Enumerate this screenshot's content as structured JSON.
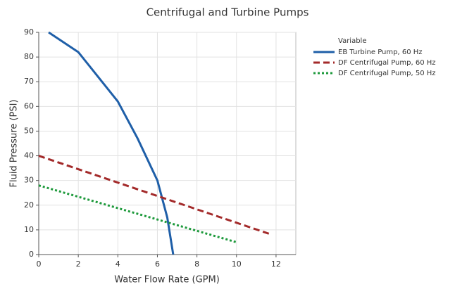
{
  "chart_data": {
    "type": "line",
    "title": "Centrifugal and Turbine Pumps",
    "x_label": "Water Flow Rate (GPM)",
    "y_label": "Fluid Pressure (PSI)",
    "legend_title": "Variable",
    "legend_position": "right",
    "grid": true,
    "xlim": [
      0,
      13
    ],
    "ylim": [
      0,
      90
    ],
    "xticks": [
      0,
      2,
      4,
      6,
      8,
      10,
      12
    ],
    "yticks": [
      0,
      10,
      20,
      30,
      40,
      50,
      60,
      70,
      80,
      90
    ],
    "series": [
      {
        "name": "EB Turbine Pump, 60 Hz",
        "color": "#1f5fa8",
        "dash": "solid",
        "x": [
          0.5,
          2,
          3,
          4,
          5,
          6,
          6.5,
          6.8
        ],
        "values": [
          90,
          82,
          72,
          62,
          47,
          30,
          15,
          0
        ]
      },
      {
        "name": "DF Centrifugal Pump, 60 Hz",
        "color": "#a32a2a",
        "dash": "dashed",
        "x": [
          0,
          11.8
        ],
        "values": [
          40,
          8
        ]
      },
      {
        "name": "DF Centrifugal Pump, 50 Hz",
        "color": "#1e9a3c",
        "dash": "dotted",
        "x": [
          0,
          10
        ],
        "values": [
          28,
          5
        ]
      }
    ]
  }
}
